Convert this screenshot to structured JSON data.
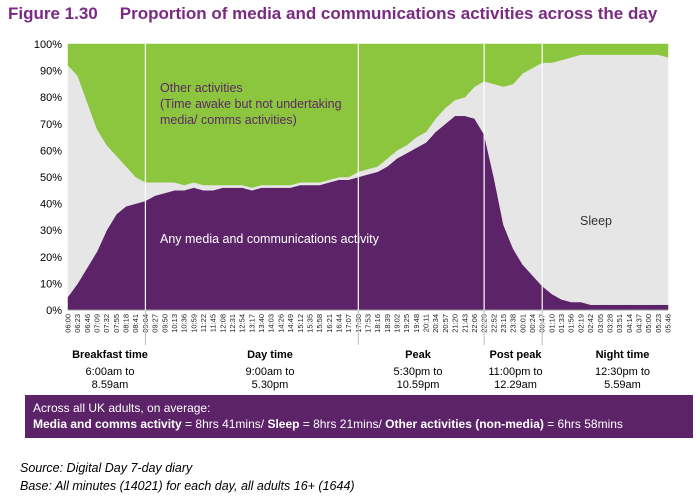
{
  "figure": {
    "number": "Figure 1.30",
    "title": "Proportion of media and communications activities across the day"
  },
  "chart_data": {
    "type": "area",
    "stacked": true,
    "ylim": [
      0,
      100
    ],
    "y_ticks": [
      "0%",
      "10%",
      "20%",
      "30%",
      "40%",
      "50%",
      "60%",
      "70%",
      "80%",
      "90%",
      "100%"
    ],
    "x": [
      "06:00",
      "06:23",
      "06:46",
      "07:09",
      "07:32",
      "07:55",
      "08:18",
      "08:41",
      "09:04",
      "09:27",
      "09:50",
      "10:13",
      "10:36",
      "10:59",
      "11:22",
      "11:45",
      "12:08",
      "12:31",
      "12:54",
      "13:17",
      "13:40",
      "14:03",
      "14:26",
      "14:49",
      "15:12",
      "15:35",
      "15:58",
      "16:21",
      "16:44",
      "17:07",
      "17:30",
      "17:53",
      "18:16",
      "18:39",
      "19:02",
      "19:25",
      "19:48",
      "20:11",
      "20:34",
      "20:57",
      "21:20",
      "21:43",
      "22:06",
      "22:29",
      "22:52",
      "23:15",
      "23:38",
      "00:01",
      "00:24",
      "00:47",
      "01:10",
      "01:33",
      "01:56",
      "02:19",
      "02:42",
      "03:05",
      "03:28",
      "03:51",
      "04:14",
      "04:37",
      "05:00",
      "05:23",
      "05:46"
    ],
    "series": [
      {
        "name": "Any media and communications activity",
        "color": "#5c2369",
        "values": [
          5,
          10,
          16,
          22,
          30,
          36,
          39,
          40,
          41,
          43,
          44,
          45,
          45,
          46,
          45,
          45,
          46,
          46,
          46,
          45,
          46,
          46,
          46,
          46,
          47,
          47,
          47,
          48,
          49,
          49,
          50,
          51,
          52,
          54,
          57,
          59,
          61,
          63,
          67,
          70,
          73,
          73,
          72,
          66,
          50,
          32,
          23,
          17,
          13,
          9,
          6,
          4,
          3,
          3,
          2,
          2,
          2,
          2,
          2,
          2,
          2,
          2,
          2
        ]
      },
      {
        "name": "Sleep",
        "color": "#e6e6e6",
        "values": [
          87,
          78,
          62,
          46,
          32,
          22,
          15,
          10,
          7,
          5,
          4,
          3,
          2,
          2,
          2,
          2,
          1,
          1,
          1,
          1,
          1,
          1,
          1,
          1,
          1,
          1,
          1,
          1,
          1,
          1,
          2,
          2,
          2,
          3,
          3,
          3,
          4,
          4,
          5,
          6,
          6,
          7,
          12,
          20,
          35,
          52,
          62,
          72,
          78,
          84,
          87,
          90,
          92,
          93,
          94,
          94,
          94,
          94,
          94,
          94,
          94,
          94,
          93
        ]
      },
      {
        "name": "Other activities",
        "color": "#8cc63f",
        "values": [
          8,
          12,
          22,
          32,
          38,
          42,
          46,
          50,
          52,
          52,
          52,
          52,
          53,
          52,
          53,
          53,
          53,
          53,
          53,
          54,
          53,
          53,
          53,
          53,
          52,
          52,
          52,
          51,
          50,
          50,
          48,
          47,
          46,
          43,
          40,
          38,
          35,
          33,
          28,
          24,
          21,
          20,
          16,
          14,
          15,
          16,
          15,
          11,
          9,
          7,
          7,
          6,
          5,
          4,
          4,
          4,
          4,
          4,
          4,
          4,
          4,
          4,
          5
        ]
      }
    ],
    "annotations": {
      "other_title": "Other activities",
      "other_sub1": "(Time awake but not undertaking",
      "other_sub2": "media/ comms activities)",
      "sleep": "Sleep",
      "media": "Any media and communications activity"
    },
    "dividers_at": [
      "09:04",
      "17:30",
      "22:29",
      "00:47"
    ]
  },
  "periods": [
    {
      "label": "Breakfast time",
      "line1": "6:00am to",
      "line2": "8.59am"
    },
    {
      "label": "Day time",
      "line1": "9:00am to",
      "line2": "5.30pm"
    },
    {
      "label": "Peak",
      "line1": "5:30pm to",
      "line2": "10.59pm"
    },
    {
      "label": "Post peak",
      "line1": "11:00pm to",
      "line2": "12.29am"
    },
    {
      "label": "Night time",
      "line1": "12:30pm to",
      "line2": "5.59am"
    }
  ],
  "summary": {
    "intro": "Across all UK adults, on average:",
    "media_label": "Media and comms activity",
    "media_value": " = 8hrs 41mins/ ",
    "sleep_label": "Sleep",
    "sleep_value": " = 8hrs 21mins/ ",
    "other_label": "Other activities (non-media)",
    "other_value": " = 6hrs 58mins"
  },
  "footnotes": {
    "source": "Source: Digital Day 7-day diary",
    "base": "Base:  All minutes (14021) for each day, all adults 16+ (1644)"
  }
}
